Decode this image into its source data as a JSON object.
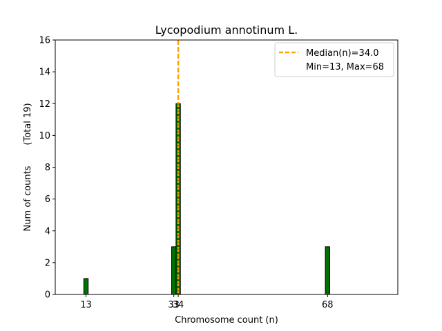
{
  "chart_data": {
    "type": "bar",
    "title": "Lycopodium annotinum L.",
    "xlabel": "Chromosome count (n)",
    "ylabel": "Num of counts",
    "ylabel_total": "(Total 19)",
    "xlim": [
      6,
      84
    ],
    "ylim": [
      0,
      16
    ],
    "yticks": [
      0,
      2,
      4,
      6,
      8,
      10,
      12,
      14,
      16
    ],
    "xticks": [
      13,
      33,
      34,
      68
    ],
    "bar_width": 1,
    "bars": [
      {
        "x": 13,
        "value": 1
      },
      {
        "x": 33,
        "value": 3
      },
      {
        "x": 34,
        "value": 12
      },
      {
        "x": 68,
        "value": 3
      }
    ],
    "median": 34.0,
    "legend": {
      "median_label": "Median(n)=34.0",
      "range_label": "Min=13, Max=68",
      "position": "top-right"
    },
    "colors": {
      "bar_fill": "#007000",
      "bar_edge": "#000000",
      "median_line": "#ffa500"
    },
    "grid": false
  }
}
